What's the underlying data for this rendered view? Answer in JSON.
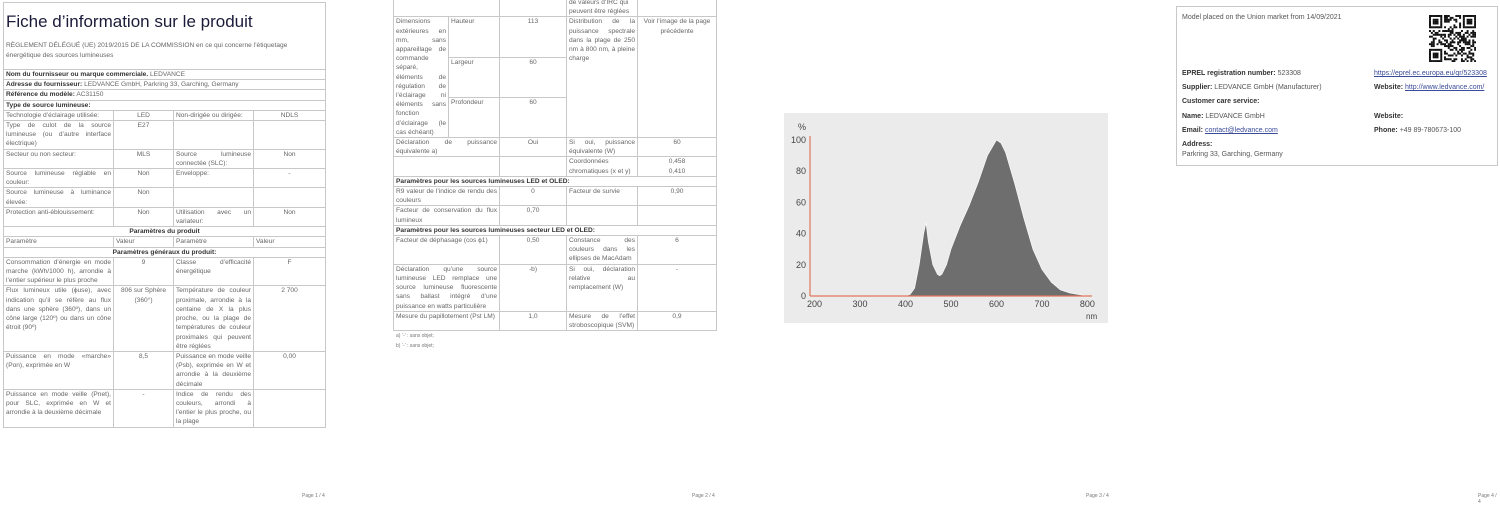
{
  "page1": {
    "title": "Fiche d’information sur le produit",
    "subtitle": "RÈGLEMENT DÉLÉGUÉ (UE) 2019/2015 DE LA COMMISSION en ce qui concerne l’étiquetage énergétique des sources lumineuses",
    "info_rows": [
      {
        "label": "Nom du fournisseur ou marque commerciale.",
        "value": "LEDVANCE"
      },
      {
        "label": "Adresse du fournisseur:",
        "value": "LEDVANCE GmbH, Parkring 33, Garching, Germany"
      },
      {
        "label": "Référence du modèle:",
        "value": "AC31150"
      }
    ],
    "type_heading": "Type de source lumineuse:",
    "type_rows": [
      [
        "Technologie d’éclairage utilisée:",
        "LED",
        "Non-dirigée ou dirigée:",
        "NDLS"
      ],
      [
        "Type de culot de la source lumineuse (ou d’autre interface électrique)",
        "E27",
        "",
        ""
      ],
      [
        "Secteur ou non secteur:",
        "MLS",
        "Source lumineuse connectée (SLC):",
        "Non"
      ],
      [
        "Source lumineuse réglable en couleur:",
        "Non",
        "Enveloppe:",
        "-"
      ],
      [
        "Source lumineuse à luminance élevée:",
        "Non",
        "",
        ""
      ],
      [
        "Protection anti-éblouissement:",
        "Non",
        "Utilisation avec un variateur:",
        "Non"
      ]
    ],
    "params_heading": "Paramètres du produit",
    "col_headers": [
      "Paramètre",
      "Valeur",
      "Paramètre",
      "Valeur"
    ],
    "general_heading": "Paramètres généraux du produit:",
    "general_rows": [
      [
        "Consommation d’énergie en mode marche (kWh/1000 h), arrondie à l’entier supérieur le plus proche",
        "9",
        "Classe d’efficacité énergétique",
        "F"
      ],
      [
        "Flux lumineux utile (ϕuse), avec indication qu’il se réfère au flux dans une sphère (360º), dans un cône large (120º) ou dans un cône étroit (90º)",
        "806 sur Sphère (360°)",
        "Température de couleur proximale, arrondie à la centaine de X la plus proche, ou la plage de températures de couleur proximales qui peuvent être réglées",
        "2 700"
      ],
      [
        "Puissance en mode «marche» (Pon), exprimée en W",
        "8,5",
        "Puissance en mode veille (Psb), exprimée en W et arrondie à la deuxième décimale",
        "0,00"
      ],
      [
        "Puissance en mode veille (Pnet), pour SLC, exprimée en W et arrondie à la deuxième décimale",
        "-",
        "Indice de rendu des couleurs, arrondi à l’entier le plus proche, ou la plage",
        ""
      ]
    ],
    "page_number": "Page 1 / 4"
  },
  "page2": {
    "cont_row": [
      "",
      "",
      "de valeurs d’IRC qui peuvent être réglées",
      ""
    ],
    "dimensions": {
      "label": "Dimensions extérieures en mm, sans appareillage de commande séparé, éléments de régulation de l’éclairage ni éléments sans fonction d’éclairage (le cas échéant)",
      "items": [
        {
          "name": "Hauteur",
          "value": "113"
        },
        {
          "name": "Largeur",
          "value": "60"
        },
        {
          "name": "Profondeur",
          "value": "60"
        }
      ],
      "param": "Distribution de la puissance spectrale dans la plage de 250 nm à 800 nm, à pleine charge",
      "value": "Voir l’image de la page précédente"
    },
    "rows": [
      [
        "Déclaration de puissance équivalente a)",
        "Oui",
        "Si oui, puissance équivalente (W)",
        "60"
      ],
      [
        "",
        "",
        "Coordonnées chromatiques (x et y)",
        "0,458\n0,410"
      ]
    ],
    "led_heading": "Paramètres pour les sources lumineuses LED et OLED:",
    "led_rows": [
      [
        "R9 valeur de l’indice de rendu des couleurs",
        "0",
        "Facteur de survie",
        "0,90"
      ],
      [
        "Facteur de conservation du flux lumineux",
        "0,70",
        "",
        ""
      ]
    ],
    "mains_heading": "Paramètres pour les sources lumineuses secteur LED et OLED:",
    "mains_rows": [
      [
        "Facteur de déphasage (cos ϕ1)",
        "0,50",
        "Constance des couleurs dans les ellipses de MacAdam",
        "6"
      ],
      [
        "Déclaration qu’une source lumineuse LED remplace une source lumineuse fluorescente sans ballast intégré d’une puissance en watts particulière",
        "-b)",
        "Si oui, déclaration relative au remplacement (W)",
        "-"
      ],
      [
        "Mesure du papillotement (Pst LM)",
        "1,0",
        "Mesure de l’effet stroboscopique (SVM)",
        "0,9"
      ]
    ],
    "footnotes": [
      "a) ‘-’ : sans objet;",
      "b) ‘-’ : sans objet;"
    ],
    "page_number": "Page 2 / 4"
  },
  "page3": {
    "page_number": "Page 3 / 4",
    "chart_data": {
      "type": "area",
      "title": "",
      "ylabel": "%",
      "xlabel": "nm",
      "xlim": [
        190,
        810
      ],
      "ylim": [
        0,
        100
      ],
      "xticks": [
        200,
        300,
        400,
        500,
        600,
        700,
        800
      ],
      "yticks": [
        0,
        20,
        40,
        60,
        80,
        100
      ],
      "grid": false,
      "colors": {
        "fill": "#6e6e6e",
        "axis": "#e0785a",
        "background": "#ebebeb"
      },
      "x": [
        400,
        410,
        420,
        430,
        440,
        445,
        450,
        460,
        470,
        475,
        480,
        490,
        500,
        520,
        540,
        560,
        580,
        600,
        610,
        620,
        640,
        660,
        680,
        700,
        720,
        740,
        760,
        780,
        800
      ],
      "y": [
        0,
        1,
        5,
        20,
        40,
        47,
        35,
        20,
        14,
        13,
        14,
        20,
        30,
        45,
        58,
        73,
        90,
        100,
        98,
        92,
        72,
        50,
        30,
        17,
        9,
        4,
        2,
        1,
        0
      ]
    }
  },
  "page4": {
    "market": "Model placed on the Union market from 14/09/2021",
    "eprel_label": "EPREL registration number:",
    "eprel_value": "523308",
    "eprel_link": "https://eprel.ec.europa.eu/qr/523308",
    "supplier_label": "Supplier:",
    "supplier_value": "LEDVANCE GmbH (Manufacturer)",
    "website_label": "Website:",
    "website_value": "http://www.ledvance.com/",
    "care_label": "Customer care service:",
    "name_label": "Name:",
    "name_value": "LEDVANCE GmbH",
    "care_website_label": "Website:",
    "email_label": "Email:",
    "email_value": "contact@ledvance.com",
    "phone_label": "Phone:",
    "phone_value": "+49 89-780673-100",
    "address_label": "Address:",
    "address_value": "Parkring 33, Garching, Germany",
    "qr_icon": "qr-code-icon",
    "page_number": "Page 4 / 4"
  }
}
